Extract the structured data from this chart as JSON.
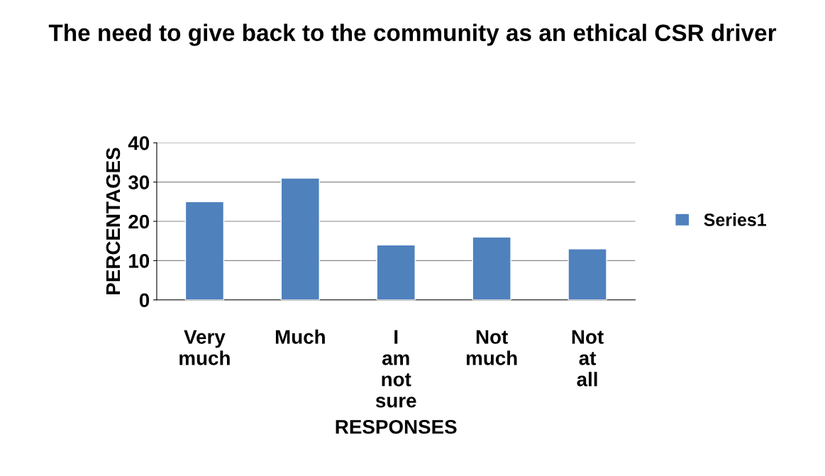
{
  "chart_data": {
    "type": "bar",
    "title": "The need to give back to the community as an ethical CSR driver",
    "xlabel": "RESPONSES",
    "ylabel": "PERCENTAGES",
    "categories": [
      "Very much",
      "Much",
      "I am not sure",
      "Not much",
      "Not at all"
    ],
    "series": [
      {
        "name": "Series1",
        "color": "#4f81bd",
        "values": [
          25,
          31,
          14,
          16,
          13
        ]
      }
    ],
    "ylim": [
      0,
      40
    ],
    "yticks": [
      0,
      10,
      20,
      30,
      40
    ],
    "grid": "y",
    "legend": "right"
  }
}
